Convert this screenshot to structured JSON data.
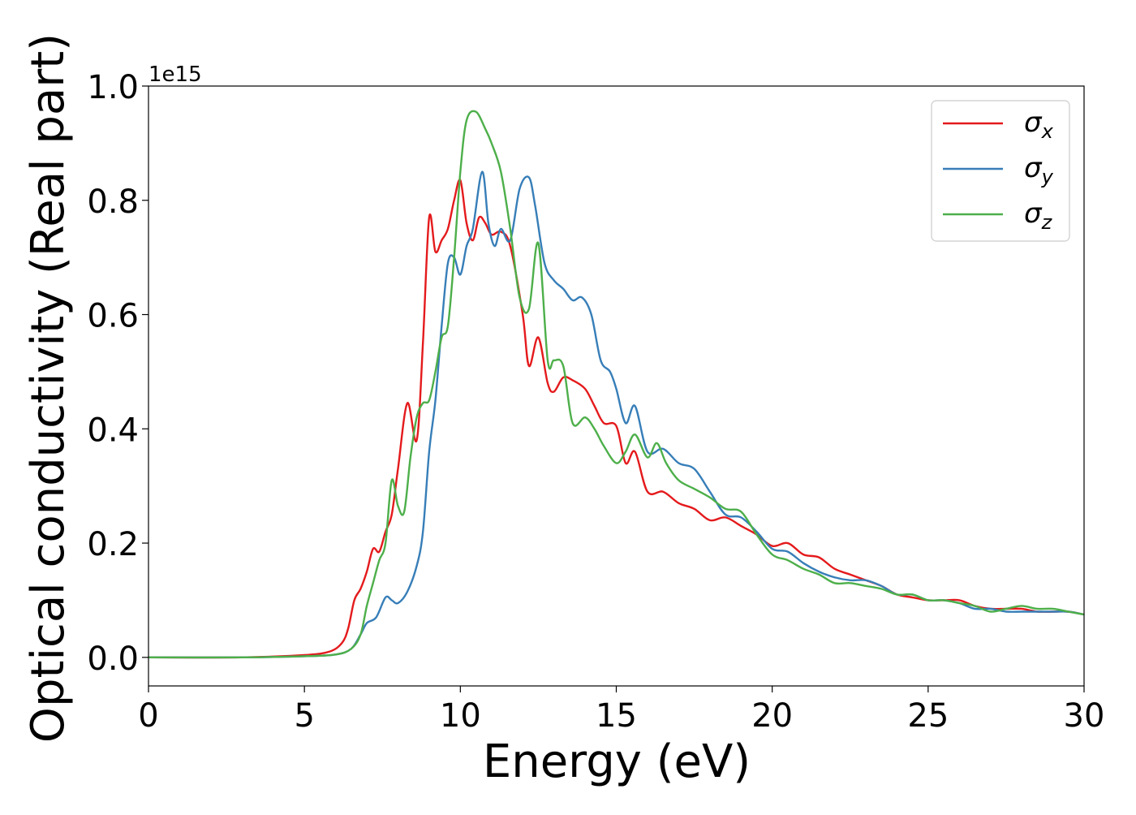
{
  "chart_data": {
    "type": "line",
    "xlabel": "Energy (eV)",
    "ylabel": "Optical conductivity (Real part)",
    "offset_text": "1e15",
    "xlim": [
      0,
      30
    ],
    "ylim": [
      -0.05,
      1.0
    ],
    "xticks": [
      0,
      5,
      10,
      15,
      20,
      25,
      30
    ],
    "yticks": [
      0.0,
      0.2,
      0.4,
      0.6,
      0.8,
      1.0
    ],
    "xtick_labels": [
      "0",
      "5",
      "10",
      "15",
      "20",
      "25",
      "30"
    ],
    "ytick_labels": [
      "0.0",
      "0.2",
      "0.4",
      "0.6",
      "0.8",
      "1.0"
    ],
    "y_scale_factor": 1000000000000000.0,
    "grid": false,
    "legend": {
      "position": "top-right",
      "entries": [
        {
          "symbol": "σ",
          "sub": "x",
          "color": "#e41a1c"
        },
        {
          "symbol": "σ",
          "sub": "y",
          "color": "#377eb8"
        },
        {
          "symbol": "σ",
          "sub": "z",
          "color": "#4daf4a"
        }
      ]
    },
    "series": [
      {
        "name": "σx",
        "color": "#e41a1c",
        "x": [
          0,
          3,
          5,
          5.8,
          6.2,
          6.4,
          6.6,
          6.8,
          7.0,
          7.2,
          7.4,
          7.6,
          7.8,
          8.0,
          8.3,
          8.6,
          8.8,
          9.0,
          9.2,
          9.4,
          9.6,
          9.8,
          10.0,
          10.2,
          10.4,
          10.6,
          10.8,
          11.0,
          11.3,
          11.6,
          12.0,
          12.2,
          12.5,
          12.8,
          13.0,
          13.3,
          13.6,
          14.0,
          14.3,
          14.6,
          15.0,
          15.3,
          15.6,
          16.0,
          16.5,
          17.0,
          17.5,
          18.0,
          18.5,
          19.0,
          19.5,
          20.0,
          20.5,
          21.0,
          21.5,
          22.0,
          22.5,
          23.0,
          23.5,
          24.0,
          24.5,
          25.0,
          25.5,
          26.0,
          26.5,
          27.0,
          27.5,
          28.0,
          28.5,
          29.0,
          29.5,
          30.0
        ],
        "y": [
          0.0,
          0.0,
          0.004,
          0.01,
          0.025,
          0.05,
          0.1,
          0.12,
          0.15,
          0.19,
          0.185,
          0.22,
          0.25,
          0.33,
          0.445,
          0.38,
          0.55,
          0.77,
          0.71,
          0.73,
          0.75,
          0.8,
          0.835,
          0.76,
          0.73,
          0.77,
          0.76,
          0.74,
          0.745,
          0.72,
          0.6,
          0.51,
          0.56,
          0.48,
          0.465,
          0.49,
          0.485,
          0.47,
          0.44,
          0.41,
          0.405,
          0.34,
          0.36,
          0.29,
          0.29,
          0.27,
          0.26,
          0.24,
          0.245,
          0.23,
          0.215,
          0.195,
          0.2,
          0.18,
          0.175,
          0.155,
          0.145,
          0.135,
          0.125,
          0.11,
          0.105,
          0.1,
          0.1,
          0.1,
          0.09,
          0.085,
          0.085,
          0.085,
          0.08,
          0.08,
          0.08,
          0.075
        ]
      },
      {
        "name": "σy",
        "color": "#377eb8",
        "x": [
          0,
          3,
          5,
          6.0,
          6.5,
          6.8,
          7.0,
          7.3,
          7.6,
          7.8,
          8.0,
          8.3,
          8.6,
          8.8,
          9.0,
          9.2,
          9.4,
          9.6,
          9.8,
          10.0,
          10.2,
          10.4,
          10.7,
          10.9,
          11.1,
          11.3,
          11.6,
          11.9,
          12.2,
          12.4,
          12.7,
          13.0,
          13.3,
          13.6,
          13.9,
          14.2,
          14.5,
          14.8,
          15.0,
          15.3,
          15.6,
          16.0,
          16.5,
          17.0,
          17.5,
          18.0,
          18.5,
          19.0,
          19.5,
          20.0,
          20.5,
          21.0,
          21.5,
          22.0,
          22.5,
          23.0,
          23.5,
          24.0,
          24.5,
          25.0,
          25.5,
          26.0,
          26.5,
          27.0,
          27.5,
          28.0,
          28.5,
          29.0,
          29.5,
          30.0
        ],
        "y": [
          0.0,
          0.0,
          0.002,
          0.005,
          0.015,
          0.04,
          0.06,
          0.07,
          0.105,
          0.1,
          0.095,
          0.115,
          0.16,
          0.22,
          0.36,
          0.45,
          0.58,
          0.69,
          0.7,
          0.67,
          0.72,
          0.75,
          0.85,
          0.76,
          0.72,
          0.75,
          0.73,
          0.82,
          0.84,
          0.79,
          0.69,
          0.66,
          0.645,
          0.625,
          0.63,
          0.6,
          0.52,
          0.5,
          0.47,
          0.41,
          0.44,
          0.36,
          0.365,
          0.34,
          0.33,
          0.29,
          0.25,
          0.245,
          0.22,
          0.19,
          0.185,
          0.165,
          0.15,
          0.14,
          0.135,
          0.135,
          0.125,
          0.11,
          0.11,
          0.1,
          0.1,
          0.095,
          0.085,
          0.085,
          0.08,
          0.08,
          0.08,
          0.08,
          0.08,
          0.075
        ]
      },
      {
        "name": "σz",
        "color": "#4daf4a",
        "x": [
          0,
          3,
          5,
          6.0,
          6.5,
          6.8,
          7.0,
          7.2,
          7.4,
          7.6,
          7.8,
          8.0,
          8.2,
          8.4,
          8.6,
          8.8,
          9.0,
          9.2,
          9.4,
          9.6,
          9.8,
          10.0,
          10.2,
          10.5,
          10.8,
          11.0,
          11.3,
          11.6,
          11.9,
          12.2,
          12.5,
          12.8,
          13.0,
          13.3,
          13.6,
          14.0,
          14.3,
          14.6,
          15.0,
          15.3,
          15.6,
          16.0,
          16.3,
          16.6,
          17.0,
          17.5,
          18.0,
          18.5,
          19.0,
          19.5,
          20.0,
          20.5,
          21.0,
          21.5,
          22.0,
          22.5,
          23.0,
          23.5,
          24.0,
          24.5,
          25.0,
          25.5,
          26.0,
          26.5,
          27.0,
          27.5,
          28.0,
          28.5,
          29.0,
          29.5,
          30.0
        ],
        "y": [
          0.0,
          0.0,
          0.002,
          0.005,
          0.015,
          0.04,
          0.09,
          0.13,
          0.17,
          0.2,
          0.31,
          0.265,
          0.255,
          0.35,
          0.42,
          0.445,
          0.45,
          0.5,
          0.56,
          0.58,
          0.7,
          0.85,
          0.94,
          0.955,
          0.925,
          0.9,
          0.85,
          0.75,
          0.63,
          0.61,
          0.725,
          0.52,
          0.52,
          0.51,
          0.41,
          0.42,
          0.4,
          0.37,
          0.34,
          0.36,
          0.39,
          0.35,
          0.375,
          0.34,
          0.31,
          0.295,
          0.28,
          0.26,
          0.255,
          0.215,
          0.18,
          0.17,
          0.155,
          0.145,
          0.13,
          0.13,
          0.125,
          0.12,
          0.11,
          0.11,
          0.1,
          0.1,
          0.095,
          0.09,
          0.08,
          0.085,
          0.09,
          0.085,
          0.085,
          0.08,
          0.075
        ]
      }
    ]
  }
}
